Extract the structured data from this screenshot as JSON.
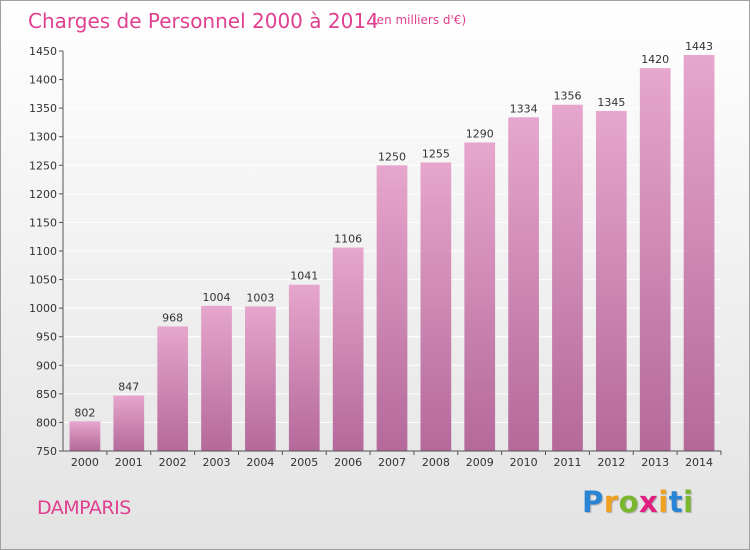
{
  "chart_data": {
    "type": "bar",
    "title": "Charges de Personnel 2000 à 2014",
    "subtitle": "(en milliers d'€)",
    "categories": [
      "2000",
      "2001",
      "2002",
      "2003",
      "2004",
      "2005",
      "2006",
      "2007",
      "2008",
      "2009",
      "2010",
      "2011",
      "2012",
      "2013",
      "2014"
    ],
    "values": [
      802,
      847,
      968,
      1004,
      1003,
      1041,
      1106,
      1250,
      1255,
      1290,
      1334,
      1356,
      1345,
      1420,
      1443
    ],
    "ylim": [
      750,
      1450
    ],
    "yticks": [
      750,
      800,
      850,
      900,
      950,
      1000,
      1050,
      1100,
      1150,
      1200,
      1250,
      1300,
      1350,
      1400,
      1450
    ],
    "grid": true,
    "bar_color_top": "#e6a6cd",
    "bar_color_bottom": "#b4699a",
    "axis_label_color": "#333333"
  },
  "place_name": "DAMPARIS",
  "logo": {
    "letters": [
      "P",
      "r",
      "o",
      "x",
      "i",
      "t",
      "i"
    ],
    "colors": [
      "#2a84d4",
      "#f0a020",
      "#7ab62e",
      "#e02080",
      "#f0a020",
      "#2a84d4",
      "#7ab62e"
    ]
  },
  "colors": {
    "title": "#e0408f",
    "grid": "#ffffff"
  }
}
